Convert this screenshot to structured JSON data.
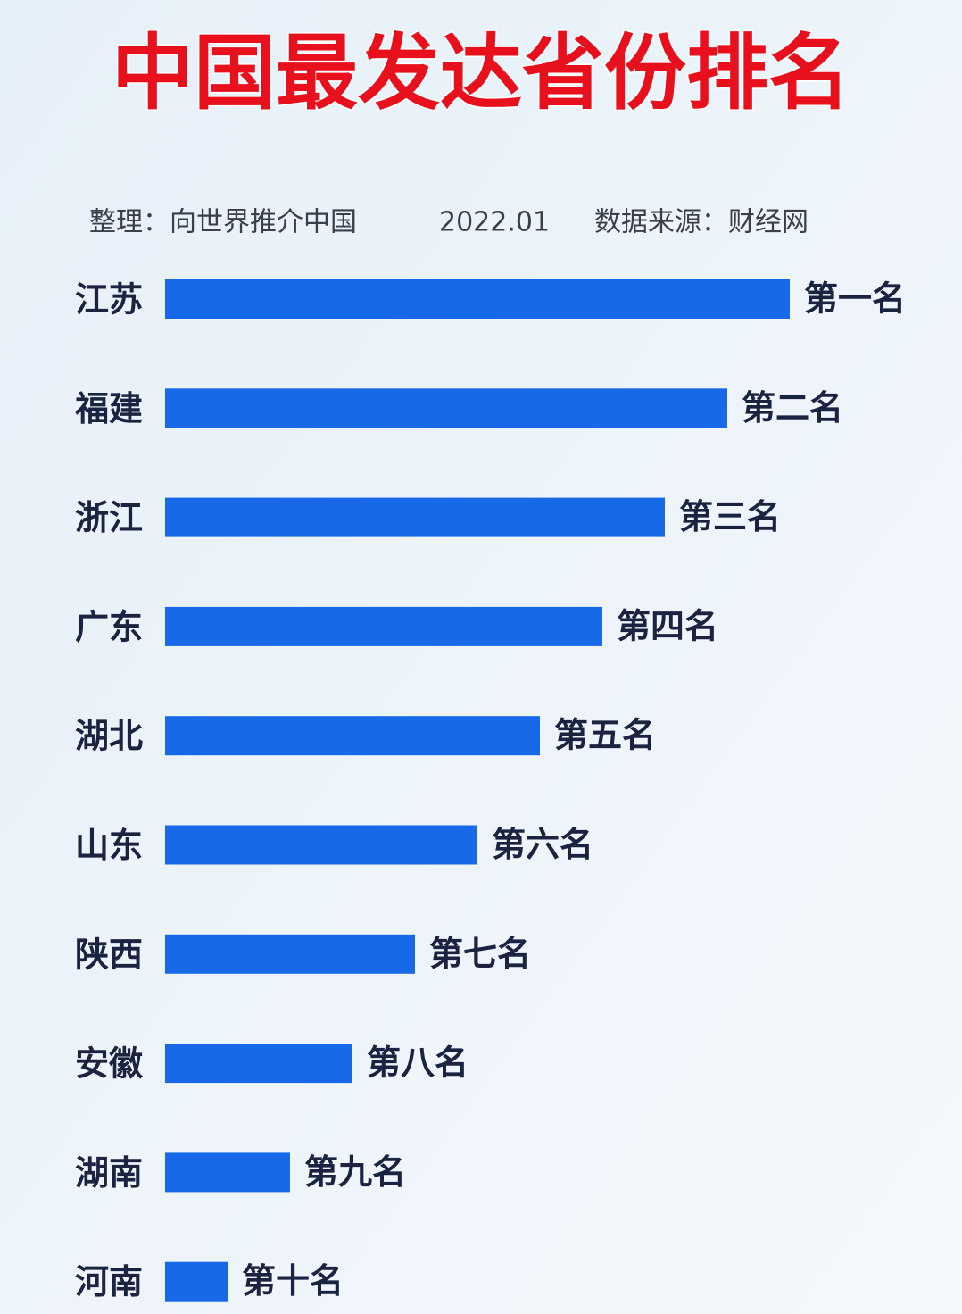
{
  "chart_data": {
    "type": "bar",
    "orientation": "horizontal",
    "title": "中国最发达省份排名",
    "subtitle": [
      "整理：向世界推介中国",
      "2022.01",
      "数据来源：财经网"
    ],
    "categories": [
      "江苏",
      "福建",
      "浙江",
      "广东",
      "湖北",
      "山东",
      "陕西",
      "安徽",
      "湖南",
      "河南"
    ],
    "values": [
      10,
      9,
      8,
      7,
      6,
      5,
      4,
      3,
      2,
      1
    ],
    "labels": [
      "第一名",
      "第二名",
      "第三名",
      "第四名",
      "第五名",
      "第六名",
      "第七名",
      "第八名",
      "第九名",
      "第十名"
    ],
    "color": "#1769e8"
  }
}
